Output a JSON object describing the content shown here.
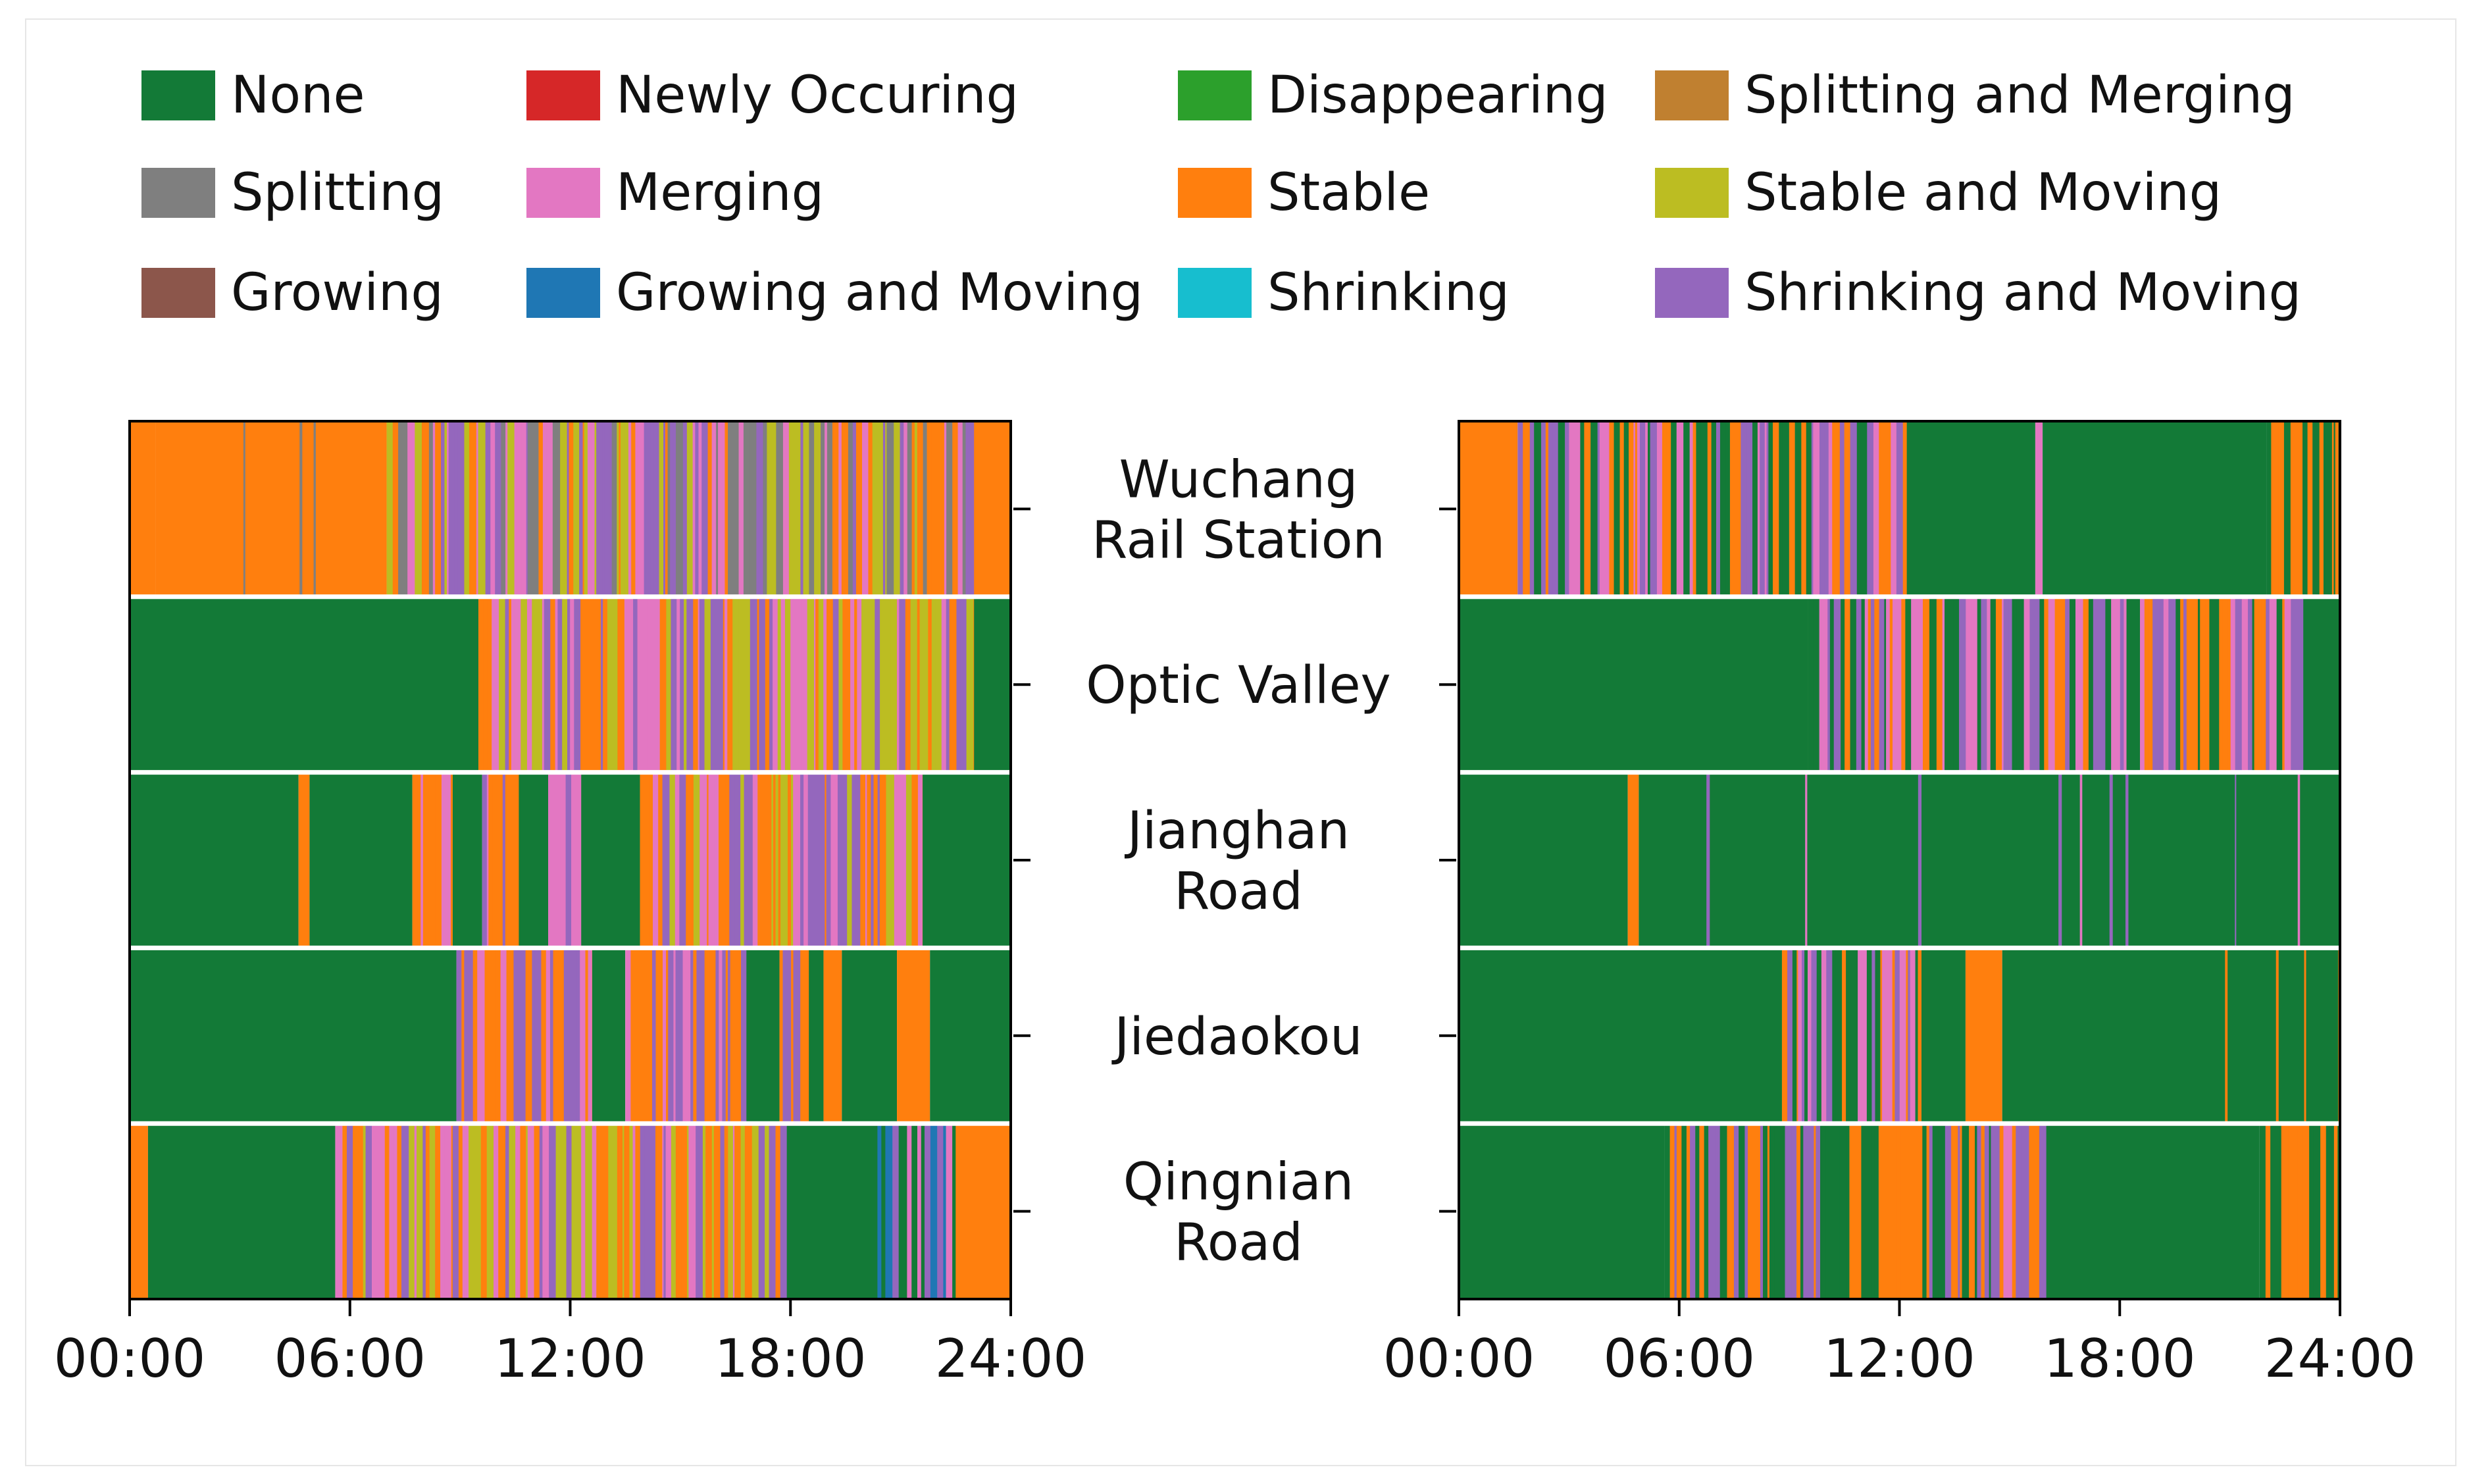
{
  "legend": {
    "items": [
      {
        "label": "None",
        "color": "#137a37"
      },
      {
        "label": "Newly Occuring",
        "color": "#d62728"
      },
      {
        "label": "Disappearing",
        "color": "#2ca02c"
      },
      {
        "label": "Splitting and Merging",
        "color": "#c08030"
      },
      {
        "label": "Splitting",
        "color": "#7f7f7f"
      },
      {
        "label": "Merging",
        "color": "#e377c2"
      },
      {
        "label": "Stable",
        "color": "#ff7f0e"
      },
      {
        "label": "Stable and Moving",
        "color": "#bcbd22"
      },
      {
        "label": "Growing",
        "color": "#8c564b"
      },
      {
        "label": "Growing and Moving",
        "color": "#1f77b4"
      },
      {
        "label": "Shrinking",
        "color": "#17becf"
      },
      {
        "label": "Shrinking and Moving",
        "color": "#9467bd"
      }
    ]
  },
  "chart_data": {
    "type": "categorical_timeline",
    "x_unit": "hour",
    "xlim": [
      0,
      24
    ],
    "x_ticks": [
      {
        "value": 0,
        "label": "00:00"
      },
      {
        "value": 6,
        "label": "06:00"
      },
      {
        "value": 12,
        "label": "12:00"
      },
      {
        "value": 18,
        "label": "18:00"
      },
      {
        "value": 24,
        "label": "24:00"
      }
    ],
    "stations": [
      {
        "lines": [
          "Wuchang",
          "Rail Station"
        ]
      },
      {
        "lines": [
          "Optic Valley"
        ]
      },
      {
        "lines": [
          "Jianghan",
          "Road"
        ]
      },
      {
        "lines": [
          "Jiedaokou"
        ]
      },
      {
        "lines": [
          "Qingnian",
          "Road"
        ]
      }
    ],
    "panels": [
      {
        "name": "left",
        "rows": [
          {
            "station": "Wuchang Rail Station",
            "segments": [
              {
                "start": 0,
                "end": 0.7,
                "state": "Stable"
              },
              {
                "start": 0.7,
                "end": 7,
                "state": "Stable",
                "sparse": [
                  "Shrinking and Moving",
                  "Merging",
                  "Splitting"
                ]
              },
              {
                "start": 7,
                "end": 23,
                "state": "mixed",
                "mix": [
                  "Shrinking and Moving",
                  "Stable",
                  "Stable and Moving",
                  "Merging",
                  "Splitting"
                ]
              },
              {
                "start": 23,
                "end": 24,
                "state": "Stable"
              }
            ]
          },
          {
            "station": "Optic Valley",
            "segments": [
              {
                "start": 0,
                "end": 9.5,
                "state": "None"
              },
              {
                "start": 9.5,
                "end": 23,
                "state": "mixed",
                "mix": [
                  "Stable",
                  "Shrinking and Moving",
                  "Merging",
                  "Stable and Moving"
                ]
              },
              {
                "start": 23,
                "end": 24,
                "state": "None"
              }
            ]
          },
          {
            "station": "Jianghan Road",
            "segments": [
              {
                "start": 0,
                "end": 4.6,
                "state": "None"
              },
              {
                "start": 4.6,
                "end": 4.9,
                "state": "Stable"
              },
              {
                "start": 4.9,
                "end": 7.7,
                "state": "None"
              },
              {
                "start": 7.7,
                "end": 8.8,
                "state": "mixed",
                "mix": [
                  "Shrinking and Moving",
                  "Stable",
                  "Merging"
                ]
              },
              {
                "start": 8.8,
                "end": 9.6,
                "state": "None"
              },
              {
                "start": 9.6,
                "end": 10.6,
                "state": "mixed",
                "mix": [
                  "Shrinking and Moving",
                  "Stable",
                  "Merging"
                ]
              },
              {
                "start": 10.6,
                "end": 11.4,
                "state": "None"
              },
              {
                "start": 11.4,
                "end": 12.3,
                "state": "mixed",
                "mix": [
                  "Shrinking and Moving",
                  "Stable",
                  "Merging"
                ]
              },
              {
                "start": 12.3,
                "end": 13.9,
                "state": "None"
              },
              {
                "start": 13.9,
                "end": 21.6,
                "state": "mixed",
                "mix": [
                  "Shrinking and Moving",
                  "Stable",
                  "Merging",
                  "Stable and Moving"
                ]
              },
              {
                "start": 21.6,
                "end": 24,
                "state": "None"
              }
            ]
          },
          {
            "station": "Jiedaokou",
            "segments": [
              {
                "start": 0,
                "end": 8.9,
                "state": "None"
              },
              {
                "start": 8.9,
                "end": 12.6,
                "state": "mixed",
                "mix": [
                  "Stable",
                  "Shrinking and Moving",
                  "Merging"
                ]
              },
              {
                "start": 12.6,
                "end": 13.5,
                "state": "None"
              },
              {
                "start": 13.5,
                "end": 16.8,
                "state": "mixed",
                "mix": [
                  "Stable",
                  "Shrinking and Moving",
                  "Merging"
                ]
              },
              {
                "start": 16.8,
                "end": 17.7,
                "state": "None"
              },
              {
                "start": 17.7,
                "end": 18.5,
                "state": "mixed",
                "mix": [
                  "Stable",
                  "Shrinking and Moving"
                ]
              },
              {
                "start": 18.5,
                "end": 18.9,
                "state": "None"
              },
              {
                "start": 18.9,
                "end": 19.4,
                "state": "Stable"
              },
              {
                "start": 19.4,
                "end": 20.9,
                "state": "None"
              },
              {
                "start": 20.9,
                "end": 21.8,
                "state": "Stable"
              },
              {
                "start": 21.8,
                "end": 24,
                "state": "None"
              }
            ]
          },
          {
            "station": "Qingnian Road",
            "segments": [
              {
                "start": 0,
                "end": 0.5,
                "state": "Stable"
              },
              {
                "start": 0.5,
                "end": 5.6,
                "state": "None"
              },
              {
                "start": 5.6,
                "end": 17.9,
                "state": "mixed",
                "mix": [
                  "Stable",
                  "Shrinking and Moving",
                  "Merging",
                  "Stable and Moving"
                ]
              },
              {
                "start": 17.9,
                "end": 20.2,
                "state": "None"
              },
              {
                "start": 20.2,
                "end": 22.5,
                "state": "mixed",
                "mix": [
                  "Shrinking and Moving",
                  "Growing and Moving",
                  "None",
                  "Merging"
                ]
              },
              {
                "start": 22.5,
                "end": 24,
                "state": "Stable"
              }
            ]
          }
        ]
      },
      {
        "name": "right",
        "rows": [
          {
            "station": "Wuchang Rail Station",
            "segments": [
              {
                "start": 0,
                "end": 1.6,
                "state": "Stable"
              },
              {
                "start": 1.6,
                "end": 3.0,
                "state": "mixed",
                "mix": [
                  "Stable",
                  "None",
                  "Shrinking and Moving"
                ]
              },
              {
                "start": 3.0,
                "end": 12.2,
                "state": "mixed",
                "mix": [
                  "None",
                  "Stable",
                  "Shrinking and Moving",
                  "Merging"
                ]
              },
              {
                "start": 12.2,
                "end": 15.7,
                "state": "None"
              },
              {
                "start": 15.7,
                "end": 15.9,
                "state": "Merging"
              },
              {
                "start": 15.9,
                "end": 22.0,
                "state": "None"
              },
              {
                "start": 22.0,
                "end": 24,
                "state": "mixed",
                "mix": [
                  "Stable",
                  "None"
                ]
              }
            ]
          },
          {
            "station": "Optic Valley",
            "segments": [
              {
                "start": 0,
                "end": 9.5,
                "state": "None"
              },
              {
                "start": 9.5,
                "end": 23,
                "state": "mixed",
                "mix": [
                  "Stable",
                  "Shrinking and Moving",
                  "Merging",
                  "None"
                ]
              },
              {
                "start": 23,
                "end": 24,
                "state": "None"
              }
            ]
          },
          {
            "station": "Jianghan Road",
            "segments": [
              {
                "start": 0,
                "end": 4.6,
                "state": "None"
              },
              {
                "start": 4.6,
                "end": 4.9,
                "state": "Stable"
              },
              {
                "start": 4.9,
                "end": 24,
                "state": "None",
                "sparse": [
                  "Shrinking and Moving",
                  "Merging"
                ]
              }
            ]
          },
          {
            "station": "Jiedaokou",
            "segments": [
              {
                "start": 0,
                "end": 8.8,
                "state": "None"
              },
              {
                "start": 8.8,
                "end": 12.6,
                "state": "mixed",
                "mix": [
                  "None",
                  "Stable",
                  "Shrinking and Moving",
                  "Merging"
                ]
              },
              {
                "start": 12.6,
                "end": 13.8,
                "state": "None"
              },
              {
                "start": 13.8,
                "end": 14.8,
                "state": "Stable"
              },
              {
                "start": 14.8,
                "end": 24,
                "state": "None",
                "sparse": [
                  "Stable"
                ]
              }
            ]
          },
          {
            "station": "Qingnian Road",
            "segments": [
              {
                "start": 0,
                "end": 5.6,
                "state": "None"
              },
              {
                "start": 5.6,
                "end": 8.6,
                "state": "mixed",
                "mix": [
                  "Stable",
                  "None",
                  "Shrinking and Moving"
                ]
              },
              {
                "start": 8.6,
                "end": 14.6,
                "state": "mixed",
                "mix": [
                  "None",
                  "Stable",
                  "Shrinking and Moving"
                ]
              },
              {
                "start": 14.6,
                "end": 16.0,
                "state": "mixed",
                "mix": [
                  "Stable",
                  "Shrinking and Moving",
                  "Merging"
                ]
              },
              {
                "start": 16.0,
                "end": 21.8,
                "state": "None"
              },
              {
                "start": 21.8,
                "end": 24,
                "state": "mixed",
                "mix": [
                  "None",
                  "Stable"
                ]
              }
            ]
          }
        ]
      }
    ]
  }
}
